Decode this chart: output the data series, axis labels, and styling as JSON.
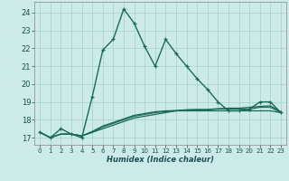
{
  "title": "",
  "xlabel": "Humidex (Indice chaleur)",
  "xlim": [
    -0.5,
    23.5
  ],
  "ylim": [
    16.6,
    24.6
  ],
  "yticks": [
    17,
    18,
    19,
    20,
    21,
    22,
    23,
    24
  ],
  "xticks": [
    0,
    1,
    2,
    3,
    4,
    5,
    6,
    7,
    8,
    9,
    10,
    11,
    12,
    13,
    14,
    15,
    16,
    17,
    18,
    19,
    20,
    21,
    22,
    23
  ],
  "bg_color": "#cceae7",
  "grid_color": "#aad4d0",
  "line_color": "#1a6b5a",
  "line1_x": [
    0,
    1,
    2,
    3,
    4,
    5,
    6,
    7,
    8,
    9,
    10,
    11,
    12,
    13,
    14,
    15,
    16,
    17,
    18,
    19,
    20,
    21,
    22,
    23
  ],
  "line1_y": [
    17.3,
    17.0,
    17.5,
    17.2,
    17.0,
    19.3,
    21.9,
    22.5,
    24.2,
    23.4,
    22.1,
    21.0,
    22.5,
    21.7,
    21.0,
    20.3,
    19.7,
    19.0,
    18.5,
    18.5,
    18.6,
    19.0,
    19.0,
    18.4
  ],
  "line2_x": [
    0,
    1,
    2,
    3,
    4,
    5,
    6,
    7,
    8,
    9,
    10,
    11,
    12,
    13,
    14,
    15,
    16,
    17,
    18,
    19,
    20,
    21,
    22,
    23
  ],
  "line2_y": [
    17.3,
    17.0,
    17.2,
    17.2,
    17.1,
    17.3,
    17.5,
    17.7,
    17.9,
    18.1,
    18.2,
    18.3,
    18.4,
    18.5,
    18.5,
    18.5,
    18.5,
    18.5,
    18.5,
    18.5,
    18.5,
    18.5,
    18.5,
    18.4
  ],
  "line3_x": [
    0,
    1,
    2,
    3,
    4,
    5,
    6,
    7,
    8,
    9,
    10,
    11,
    12,
    13,
    14,
    15,
    16,
    17,
    18,
    19,
    20,
    21,
    22,
    23
  ],
  "line3_y": [
    17.3,
    17.0,
    17.2,
    17.2,
    17.1,
    17.3,
    17.6,
    17.8,
    18.0,
    18.2,
    18.3,
    18.4,
    18.45,
    18.5,
    18.55,
    18.55,
    18.55,
    18.6,
    18.6,
    18.6,
    18.6,
    18.7,
    18.7,
    18.4
  ],
  "line4_x": [
    0,
    1,
    2,
    3,
    4,
    5,
    6,
    7,
    8,
    9,
    10,
    11,
    12,
    13,
    14,
    15,
    16,
    17,
    18,
    19,
    20,
    21,
    22,
    23
  ],
  "line4_y": [
    17.3,
    17.0,
    17.2,
    17.2,
    17.1,
    17.35,
    17.65,
    17.85,
    18.05,
    18.25,
    18.35,
    18.45,
    18.5,
    18.52,
    18.56,
    18.58,
    18.58,
    18.62,
    18.65,
    18.65,
    18.7,
    18.75,
    18.78,
    18.45
  ]
}
